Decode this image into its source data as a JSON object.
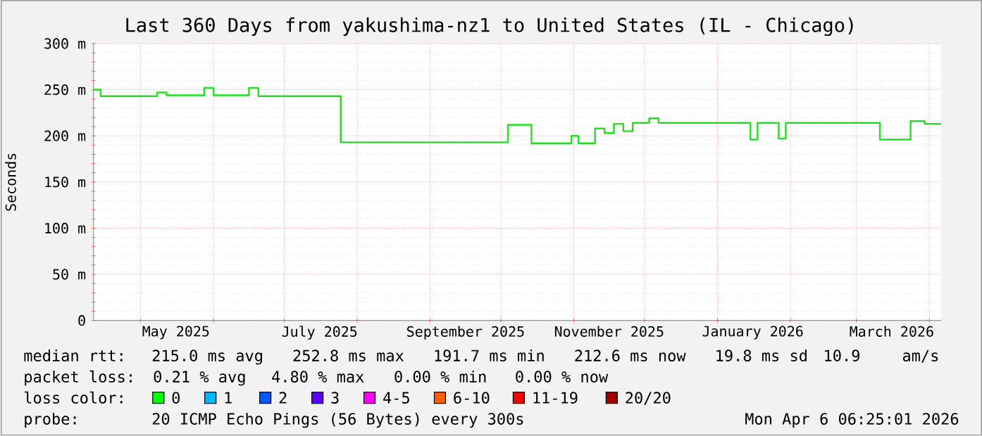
{
  "chart_data": {
    "type": "step",
    "title": "Last 360 Days from yakushima-nz1 to United States (IL - Chicago)",
    "ylabel": "Seconds",
    "xlim": [
      "2025-04-11",
      "2026-04-06"
    ],
    "xticks": [
      {
        "value": "2025-05-01",
        "label": null
      },
      {
        "value": "2025-06-01",
        "label": null
      },
      {
        "value": "2025-07-01",
        "label": null
      },
      {
        "value": "2025-08-01",
        "label": null
      },
      {
        "value": "2025-09-01",
        "label": null
      },
      {
        "value": "2025-10-01",
        "label": null
      },
      {
        "value": "2025-11-01",
        "label": null
      },
      {
        "value": "2025-12-01",
        "label": null
      },
      {
        "value": "2026-01-01",
        "label": null
      },
      {
        "value": "2026-02-01",
        "label": null
      },
      {
        "value": "2026-03-01",
        "label": null
      },
      {
        "value": "2026-04-01",
        "label": null
      },
      {
        "value": "2025-05-16",
        "label": "May 2025"
      },
      {
        "value": "2025-07-16",
        "label": "July 2025"
      },
      {
        "value": "2025-09-16",
        "label": "September 2025"
      },
      {
        "value": "2025-11-16",
        "label": "November 2025"
      },
      {
        "value": "2026-01-16",
        "label": "January 2026"
      },
      {
        "value": "2026-03-16",
        "label": "March 2026"
      }
    ],
    "ylim": [
      0,
      300
    ],
    "yticks": [
      0,
      {
        "value": 50,
        "label": "50 m"
      },
      {
        "value": 100,
        "label": "100 m"
      },
      {
        "value": 150,
        "label": "150 m"
      },
      {
        "value": 200,
        "label": "200 m"
      },
      {
        "value": 250,
        "label": "250 m"
      },
      {
        "value": 300,
        "label": "300 m"
      }
    ],
    "grid": true,
    "x": [
      "2025-04-11",
      "2025-04-14",
      "2025-05-08",
      "2025-05-12",
      "2025-05-28",
      "2025-06-01",
      "2025-06-16",
      "2025-06-20",
      "2025-07-25",
      "2025-10-04",
      "2025-10-14",
      "2025-10-31",
      "2025-11-03",
      "2025-11-10",
      "2025-11-14",
      "2025-11-18",
      "2025-11-22",
      "2025-11-26",
      "2025-12-03",
      "2025-12-07",
      "2026-01-15",
      "2026-01-18",
      "2026-01-27",
      "2026-01-30",
      "2026-03-11",
      "2026-03-24",
      "2026-03-30",
      "2026-04-06"
    ],
    "series": [
      {
        "color": "#22dd22",
        "values": [
          250,
          243,
          247,
          244,
          252,
          244,
          252,
          243,
          193,
          212,
          192,
          200,
          192,
          208,
          203,
          213,
          205,
          214,
          219,
          214,
          196,
          214,
          197,
          214,
          196,
          216,
          213,
          213
        ]
      }
    ],
    "annotations": [
      "median rtt:",
      "215.0 ms avg",
      "252.8 ms max",
      "191.7 ms min",
      "212.6 ms now",
      "19.8 ms sd",
      "10.9",
      "am/s",
      "packet loss:",
      "0.21 % avg",
      "4.80 % max",
      "0.00 % min",
      "0.00 % now",
      "loss color:",
      "0",
      "1",
      "2",
      "3",
      "4-5",
      "6-10",
      "11-19",
      "20/20",
      "probe:",
      "20 ICMP Echo Pings (56 Bytes) every 300s",
      "Mon Apr  6 06:25:01 2026"
    ]
  }
}
